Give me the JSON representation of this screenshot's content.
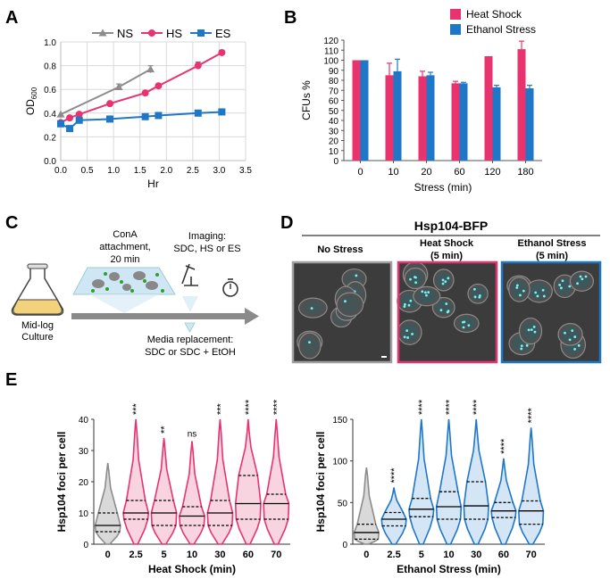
{
  "panels": {
    "a": "A",
    "b": "B",
    "c": "C",
    "d": "D",
    "e": "E"
  },
  "chart_data": [
    {
      "id": "A",
      "type": "line",
      "xlabel": "Hr",
      "ylabel": "OD600",
      "ylabel_main": "OD",
      "ylabel_sub": "600",
      "xlim": [
        0,
        3.5
      ],
      "ylim": [
        0,
        1.0
      ],
      "xticks": [
        "0.0",
        "0.5",
        "1.0",
        "1.5",
        "2.0",
        "2.5",
        "3.0",
        "3.5"
      ],
      "yticks": [
        "0.0",
        "0.2",
        "0.4",
        "0.6",
        "0.8",
        "1.0"
      ],
      "grid": true,
      "legend": "top",
      "series": [
        {
          "name": "NS",
          "color": "#8c8c8c",
          "marker": "triangle",
          "x": [
            0.0,
            1.1,
            1.7
          ],
          "y": [
            0.39,
            0.62,
            0.77
          ],
          "err": [
            0,
            0.025,
            0.03
          ]
        },
        {
          "name": "HS",
          "color": "#e8336e",
          "marker": "circle",
          "x": [
            0.0,
            0.17,
            0.35,
            0.93,
            1.6,
            1.85,
            2.6,
            3.05
          ],
          "y": [
            0.32,
            0.36,
            0.39,
            0.48,
            0.57,
            0.63,
            0.8,
            0.91
          ],
          "err": [
            0,
            0,
            0,
            0,
            0,
            0,
            0.03,
            0.02
          ]
        },
        {
          "name": "ES",
          "color": "#1f77c8",
          "marker": "square",
          "x": [
            0.0,
            0.17,
            0.35,
            0.93,
            1.6,
            1.85,
            2.6,
            3.05
          ],
          "y": [
            0.31,
            0.27,
            0.34,
            0.35,
            0.37,
            0.38,
            0.4,
            0.41
          ],
          "err": [
            0,
            0,
            0,
            0,
            0,
            0,
            0,
            0
          ]
        }
      ]
    },
    {
      "id": "B",
      "type": "bar",
      "xlabel": "Stress (min)",
      "ylabel": "CFUs %",
      "categories": [
        "0",
        "10",
        "20",
        "60",
        "120",
        "180"
      ],
      "ylim": [
        0,
        120
      ],
      "yticks": [
        "0",
        "10",
        "20",
        "30",
        "40",
        "50",
        "60",
        "70",
        "80",
        "90",
        "100",
        "110",
        "120"
      ],
      "legend": "top-right",
      "series": [
        {
          "name": "Heat Shock",
          "color": "#e8336e",
          "values": [
            100,
            85,
            84,
            77,
            104,
            111
          ],
          "err": [
            0,
            12,
            5,
            2,
            0,
            8
          ]
        },
        {
          "name": "Ethanol Stress",
          "color": "#1f77c8",
          "values": [
            100,
            89,
            85,
            77,
            73,
            72
          ],
          "err": [
            0,
            12,
            3,
            1,
            2,
            3
          ]
        }
      ]
    },
    {
      "id": "E-left",
      "type": "violin",
      "xlabel": "Heat Shock (min)",
      "ylabel": "Hsp104 foci per cell",
      "categories": [
        "0",
        "2.5",
        "5",
        "10",
        "30",
        "60",
        "70"
      ],
      "ylim": [
        0,
        40
      ],
      "yticks": [
        "0",
        "10",
        "20",
        "30",
        "40"
      ],
      "significance": [
        "",
        "***",
        "**",
        "ns",
        "***",
        "****",
        "****"
      ],
      "medians": [
        6,
        10,
        10,
        9,
        10,
        13,
        13
      ],
      "q1": [
        4,
        8,
        6,
        6,
        6,
        8,
        8
      ],
      "q3": [
        10,
        14,
        14,
        12,
        14,
        22,
        16
      ],
      "max": [
        26,
        40,
        34,
        33,
        40,
        40,
        40
      ],
      "colors": [
        "#8c8c8c",
        "#e8336e",
        "#e8336e",
        "#e8336e",
        "#e8336e",
        "#e8336e",
        "#e8336e"
      ]
    },
    {
      "id": "E-right",
      "type": "violin",
      "xlabel": "Ethanol Stress (min)",
      "ylabel": "Hsp104 foci per cell",
      "categories": [
        "0",
        "2.5",
        "5",
        "10",
        "30",
        "60",
        "70"
      ],
      "ylim": [
        0,
        150
      ],
      "yticks": [
        "0",
        "50",
        "100",
        "150"
      ],
      "significance": [
        "",
        "****",
        "****",
        "****",
        "****",
        "****",
        "****"
      ],
      "medians": [
        14,
        30,
        42,
        45,
        46,
        40,
        40
      ],
      "q1": [
        6,
        22,
        33,
        30,
        30,
        32,
        24
      ],
      "q3": [
        24,
        38,
        55,
        63,
        75,
        50,
        52
      ],
      "max": [
        92,
        68,
        150,
        150,
        150,
        103,
        140
      ],
      "colors": [
        "#8c8c8c",
        "#1f77c8",
        "#1f77c8",
        "#1f77c8",
        "#1f77c8",
        "#1f77c8",
        "#1f77c8"
      ]
    }
  ],
  "schematic": {
    "conA": "ConA",
    "attachment": "attachment,",
    "time": "20 min",
    "imaging": "Imaging:",
    "imaging_cond": "SDC, HS or ES",
    "midlog": "Mid-log",
    "culture": "Culture",
    "media1": "Media replacement:",
    "media2": "SDC or SDC + EtOH"
  },
  "micrographs": {
    "title": "Hsp104-BFP",
    "no_stress": "No Stress",
    "heat_shock": "Heat Shock",
    "heat_time": "(5 min)",
    "ethanol": "Ethanol Stress",
    "ethanol_time": "(5 min)",
    "border_colors": [
      "#a0a0a0",
      "#e8336e",
      "#1f77c8"
    ]
  }
}
